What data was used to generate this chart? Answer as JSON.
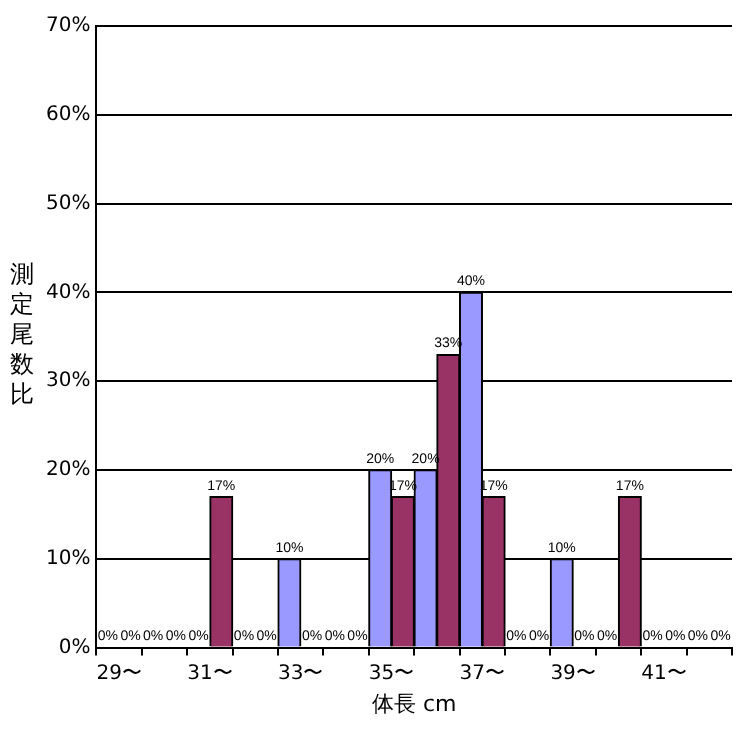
{
  "chart_data": {
    "type": "bar",
    "xlabel": "体長 cm",
    "ylabel": "測定尾数比",
    "categories": [
      "29〜",
      null,
      "31〜",
      null,
      "33〜",
      null,
      "35〜",
      null,
      "37〜",
      null,
      "39〜",
      null,
      "41〜",
      null
    ],
    "series": [
      {
        "color": "#9999ff",
        "values": [
          0,
          0,
          0,
          0,
          10,
          0,
          20,
          20,
          40,
          0,
          10,
          0,
          0,
          0
        ],
        "value_labels": [
          "0%",
          "0%",
          "0%",
          "0%",
          "10%",
          "0%",
          "20%",
          "20%",
          "40%",
          "0%",
          "10%",
          "0%",
          "0%",
          "0%"
        ]
      },
      {
        "color": "#993366",
        "values": [
          0,
          0,
          17,
          0,
          0,
          0,
          17,
          33,
          17,
          0,
          0,
          17,
          0,
          0
        ],
        "value_labels": [
          "0%",
          "0%",
          "17%",
          "0%",
          "0%",
          "0%",
          "17%",
          "33%",
          "17%",
          "0%",
          "0%",
          "17%",
          "0%",
          "0%"
        ]
      }
    ],
    "ylim": [
      0,
      70
    ],
    "yticks": [
      {
        "value": 0,
        "label": "0%"
      },
      {
        "value": 10,
        "label": "10%"
      },
      {
        "value": 20,
        "label": "20%"
      },
      {
        "value": 30,
        "label": "30%"
      },
      {
        "value": 40,
        "label": "40%"
      },
      {
        "value": 50,
        "label": "50%"
      },
      {
        "value": 60,
        "label": "60%"
      },
      {
        "value": 70,
        "label": "70%"
      }
    ],
    "grid": "y",
    "legend": false
  }
}
